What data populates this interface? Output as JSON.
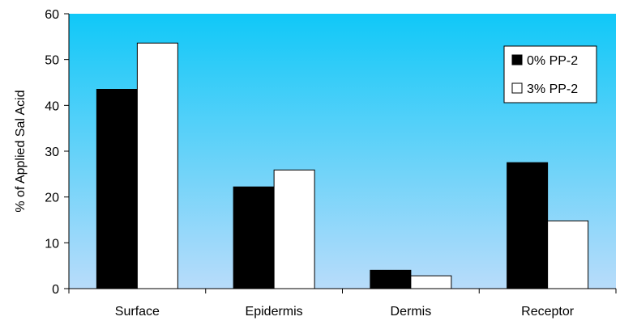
{
  "chart_data": {
    "type": "bar",
    "title": "",
    "xlabel": "",
    "ylabel": "% of Applied Sal Acid",
    "categories": [
      "Surface",
      "Epidermis",
      "Dermis",
      "Receptor"
    ],
    "series": [
      {
        "name": "0% PP-2",
        "values": [
          43.5,
          22.2,
          4.0,
          27.5
        ],
        "color": "#000000"
      },
      {
        "name": "3% PP-2",
        "values": [
          53.6,
          25.9,
          2.8,
          14.8
        ],
        "color": "#ffffff"
      }
    ],
    "ylim": [
      0,
      60
    ],
    "yticks": [
      0,
      10,
      20,
      30,
      40,
      50,
      60
    ],
    "grid": false,
    "legend": "top-right",
    "plot_gradient": [
      "#10c8f8",
      "#b8dcfa"
    ]
  }
}
